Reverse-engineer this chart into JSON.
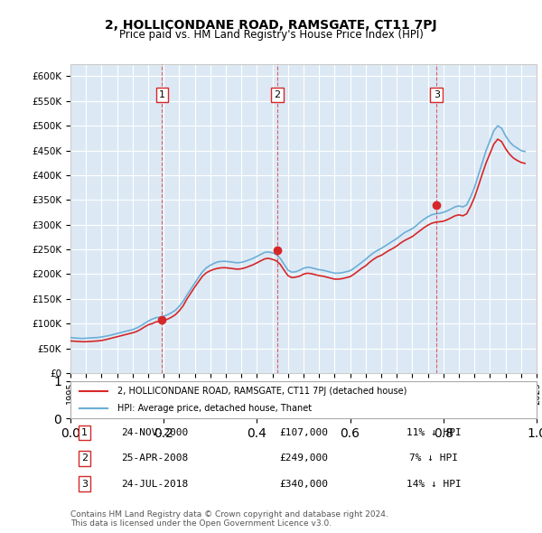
{
  "title": "2, HOLLICONDANE ROAD, RAMSGATE, CT11 7PJ",
  "subtitle": "Price paid vs. HM Land Registry's House Price Index (HPI)",
  "background_color": "#dce9f5",
  "plot_bg_color": "#dce9f5",
  "ylim": [
    0,
    625000
  ],
  "yticks": [
    0,
    50000,
    100000,
    150000,
    200000,
    250000,
    300000,
    350000,
    400000,
    450000,
    500000,
    550000,
    600000
  ],
  "xlabel_start_year": 1995,
  "xlabel_end_year": 2025,
  "sales": [
    {
      "num": 1,
      "year": 2000.9,
      "price": 107000,
      "date": "24-NOV-2000",
      "hpi_diff": "11% ↓ HPI"
    },
    {
      "num": 2,
      "year": 2008.32,
      "price": 249000,
      "date": "25-APR-2008",
      "hpi_diff": "7% ↓ HPI"
    },
    {
      "num": 3,
      "year": 2018.56,
      "price": 340000,
      "date": "24-JUL-2018",
      "hpi_diff": "14% ↓ HPI"
    }
  ],
  "hpi_line_color": "#6baed6",
  "price_line_color": "#d62728",
  "sale_marker_color": "#d62728",
  "vline_color": "#d62728",
  "legend_box_color": "#d62728",
  "legend_label_property": "2, HOLLICONDANE ROAD, RAMSGATE, CT11 7PJ (detached house)",
  "legend_label_hpi": "HPI: Average price, detached house, Thanet",
  "footer_text": "Contains HM Land Registry data © Crown copyright and database right 2024.\nThis data is licensed under the Open Government Licence v3.0.",
  "grid_color": "#ffffff",
  "hpi_data": {
    "years": [
      1995.0,
      1995.25,
      1995.5,
      1995.75,
      1996.0,
      1996.25,
      1996.5,
      1996.75,
      1997.0,
      1997.25,
      1997.5,
      1997.75,
      1998.0,
      1998.25,
      1998.5,
      1998.75,
      1999.0,
      1999.25,
      1999.5,
      1999.75,
      2000.0,
      2000.25,
      2000.5,
      2000.75,
      2001.0,
      2001.25,
      2001.5,
      2001.75,
      2002.0,
      2002.25,
      2002.5,
      2002.75,
      2003.0,
      2003.25,
      2003.5,
      2003.75,
      2004.0,
      2004.25,
      2004.5,
      2004.75,
      2005.0,
      2005.25,
      2005.5,
      2005.75,
      2006.0,
      2006.25,
      2006.5,
      2006.75,
      2007.0,
      2007.25,
      2007.5,
      2007.75,
      2008.0,
      2008.25,
      2008.5,
      2008.75,
      2009.0,
      2009.25,
      2009.5,
      2009.75,
      2010.0,
      2010.25,
      2010.5,
      2010.75,
      2011.0,
      2011.25,
      2011.5,
      2011.75,
      2012.0,
      2012.25,
      2012.5,
      2012.75,
      2013.0,
      2013.25,
      2013.5,
      2013.75,
      2014.0,
      2014.25,
      2014.5,
      2014.75,
      2015.0,
      2015.25,
      2015.5,
      2015.75,
      2016.0,
      2016.25,
      2016.5,
      2016.75,
      2017.0,
      2017.25,
      2017.5,
      2017.75,
      2018.0,
      2018.25,
      2018.5,
      2018.75,
      2019.0,
      2019.25,
      2019.5,
      2019.75,
      2020.0,
      2020.25,
      2020.5,
      2020.75,
      2021.0,
      2021.25,
      2021.5,
      2021.75,
      2022.0,
      2022.25,
      2022.5,
      2022.75,
      2023.0,
      2023.25,
      2023.5,
      2023.75,
      2024.0,
      2024.25
    ],
    "values": [
      72000,
      71000,
      70500,
      70000,
      70500,
      71000,
      71500,
      72000,
      73000,
      74500,
      76000,
      78000,
      80000,
      82000,
      84000,
      86000,
      88000,
      91000,
      95000,
      100000,
      105000,
      109000,
      112000,
      113000,
      115000,
      118000,
      122000,
      127000,
      135000,
      145000,
      158000,
      170000,
      182000,
      194000,
      205000,
      213000,
      218000,
      222000,
      225000,
      226000,
      226000,
      225000,
      224000,
      223000,
      224000,
      226000,
      229000,
      232000,
      236000,
      240000,
      244000,
      245000,
      243000,
      240000,
      232000,
      220000,
      208000,
      204000,
      205000,
      208000,
      212000,
      214000,
      213000,
      211000,
      209000,
      208000,
      206000,
      204000,
      202000,
      202000,
      203000,
      205000,
      207000,
      212000,
      218000,
      224000,
      230000,
      237000,
      243000,
      248000,
      252000,
      257000,
      262000,
      267000,
      272000,
      278000,
      284000,
      288000,
      292000,
      298000,
      305000,
      311000,
      316000,
      320000,
      322000,
      323000,
      325000,
      328000,
      332000,
      336000,
      338000,
      336000,
      340000,
      356000,
      375000,
      400000,
      425000,
      450000,
      470000,
      490000,
      500000,
      495000,
      480000,
      468000,
      460000,
      455000,
      450000,
      448000
    ]
  },
  "price_data": {
    "years": [
      1995.0,
      1995.25,
      1995.5,
      1995.75,
      1996.0,
      1996.25,
      1996.5,
      1996.75,
      1997.0,
      1997.25,
      1997.5,
      1997.75,
      1998.0,
      1998.25,
      1998.5,
      1998.75,
      1999.0,
      1999.25,
      1999.5,
      1999.75,
      2000.0,
      2000.25,
      2000.5,
      2000.75,
      2001.0,
      2001.25,
      2001.5,
      2001.75,
      2002.0,
      2002.25,
      2002.5,
      2002.75,
      2003.0,
      2003.25,
      2003.5,
      2003.75,
      2004.0,
      2004.25,
      2004.5,
      2004.75,
      2005.0,
      2005.25,
      2005.5,
      2005.75,
      2006.0,
      2006.25,
      2006.5,
      2006.75,
      2007.0,
      2007.25,
      2007.5,
      2007.75,
      2008.0,
      2008.25,
      2008.5,
      2008.75,
      2009.0,
      2009.25,
      2009.5,
      2009.75,
      2010.0,
      2010.25,
      2010.5,
      2010.75,
      2011.0,
      2011.25,
      2011.5,
      2011.75,
      2012.0,
      2012.25,
      2012.5,
      2012.75,
      2013.0,
      2013.25,
      2013.5,
      2013.75,
      2014.0,
      2014.25,
      2014.5,
      2014.75,
      2015.0,
      2015.25,
      2015.5,
      2015.75,
      2016.0,
      2016.25,
      2016.5,
      2016.75,
      2017.0,
      2017.25,
      2017.5,
      2017.75,
      2018.0,
      2018.25,
      2018.5,
      2018.75,
      2019.0,
      2019.25,
      2019.5,
      2019.75,
      2020.0,
      2020.25,
      2020.5,
      2020.75,
      2021.0,
      2021.25,
      2021.5,
      2021.75,
      2022.0,
      2022.25,
      2022.5,
      2022.75,
      2023.0,
      2023.25,
      2023.5,
      2023.75,
      2024.0,
      2024.25
    ],
    "values": [
      65000,
      64500,
      64000,
      63500,
      63500,
      64000,
      64500,
      65000,
      66000,
      67500,
      69500,
      71500,
      73500,
      75500,
      77500,
      79500,
      81500,
      84000,
      88000,
      93000,
      97500,
      100000,
      103500,
      104500,
      106500,
      109000,
      113000,
      118000,
      126000,
      136000,
      150000,
      162000,
      174000,
      185000,
      196000,
      203000,
      207000,
      210000,
      212000,
      213000,
      213000,
      212000,
      211000,
      210000,
      211000,
      213000,
      216000,
      219000,
      223000,
      227000,
      231000,
      232000,
      230000,
      227000,
      220000,
      208000,
      197000,
      193000,
      194000,
      196000,
      200000,
      202000,
      201000,
      199000,
      197000,
      196000,
      194000,
      192000,
      190000,
      190000,
      191000,
      193000,
      195000,
      200000,
      206000,
      212000,
      217000,
      224000,
      230000,
      235000,
      238000,
      243000,
      248000,
      252000,
      257000,
      263000,
      268000,
      272000,
      276000,
      282000,
      288000,
      294000,
      299000,
      303000,
      305000,
      306000,
      307000,
      310000,
      314000,
      318000,
      320000,
      318000,
      322000,
      337000,
      355000,
      378000,
      402000,
      425000,
      444000,
      463000,
      473000,
      468000,
      454000,
      443000,
      435000,
      430000,
      426000,
      424000
    ]
  }
}
